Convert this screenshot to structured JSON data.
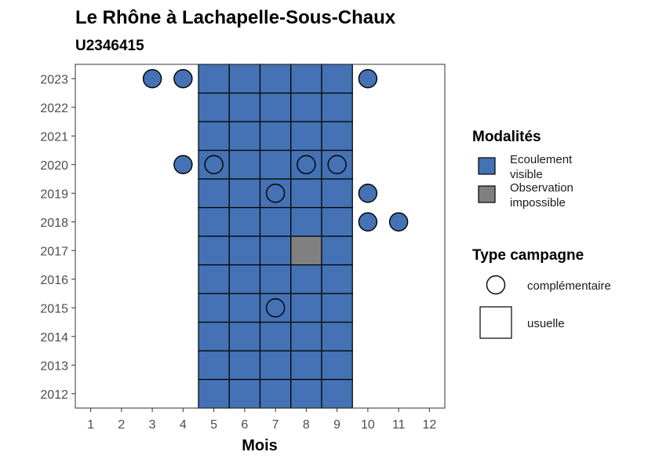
{
  "chart_data": {
    "type": "heatmap",
    "title": "Le Rhône à Lachapelle-Sous-Chaux",
    "subtitle": "U2346415",
    "xlabel": "Mois",
    "ylabel": "",
    "x_ticks": [
      "1",
      "2",
      "3",
      "4",
      "5",
      "6",
      "7",
      "8",
      "9",
      "10",
      "11",
      "12"
    ],
    "y_ticks": [
      "2012",
      "2013",
      "2014",
      "2015",
      "2016",
      "2017",
      "2018",
      "2019",
      "2020",
      "2021",
      "2022",
      "2023"
    ],
    "xlim": [
      0.5,
      12.5
    ],
    "ylim": [
      2011.5,
      2023.5
    ],
    "colors": {
      "ecoulement_visible": "#4472b4",
      "observation_impossible": "#808080"
    },
    "tiles": [
      {
        "month": 5,
        "year": 2012,
        "modalite": "Ecoulement visible"
      },
      {
        "month": 6,
        "year": 2012,
        "modalite": "Ecoulement visible"
      },
      {
        "month": 7,
        "year": 2012,
        "modalite": "Ecoulement visible"
      },
      {
        "month": 8,
        "year": 2012,
        "modalite": "Ecoulement visible"
      },
      {
        "month": 9,
        "year": 2012,
        "modalite": "Ecoulement visible"
      },
      {
        "month": 5,
        "year": 2013,
        "modalite": "Ecoulement visible"
      },
      {
        "month": 6,
        "year": 2013,
        "modalite": "Ecoulement visible"
      },
      {
        "month": 7,
        "year": 2013,
        "modalite": "Ecoulement visible"
      },
      {
        "month": 8,
        "year": 2013,
        "modalite": "Ecoulement visible"
      },
      {
        "month": 9,
        "year": 2013,
        "modalite": "Ecoulement visible"
      },
      {
        "month": 5,
        "year": 2014,
        "modalite": "Ecoulement visible"
      },
      {
        "month": 6,
        "year": 2014,
        "modalite": "Ecoulement visible"
      },
      {
        "month": 7,
        "year": 2014,
        "modalite": "Ecoulement visible"
      },
      {
        "month": 8,
        "year": 2014,
        "modalite": "Ecoulement visible"
      },
      {
        "month": 9,
        "year": 2014,
        "modalite": "Ecoulement visible"
      },
      {
        "month": 5,
        "year": 2015,
        "modalite": "Ecoulement visible"
      },
      {
        "month": 6,
        "year": 2015,
        "modalite": "Ecoulement visible"
      },
      {
        "month": 7,
        "year": 2015,
        "modalite": "Ecoulement visible"
      },
      {
        "month": 8,
        "year": 2015,
        "modalite": "Ecoulement visible"
      },
      {
        "month": 9,
        "year": 2015,
        "modalite": "Ecoulement visible"
      },
      {
        "month": 5,
        "year": 2016,
        "modalite": "Ecoulement visible"
      },
      {
        "month": 6,
        "year": 2016,
        "modalite": "Ecoulement visible"
      },
      {
        "month": 7,
        "year": 2016,
        "modalite": "Ecoulement visible"
      },
      {
        "month": 8,
        "year": 2016,
        "modalite": "Ecoulement visible"
      },
      {
        "month": 9,
        "year": 2016,
        "modalite": "Ecoulement visible"
      },
      {
        "month": 5,
        "year": 2017,
        "modalite": "Ecoulement visible"
      },
      {
        "month": 6,
        "year": 2017,
        "modalite": "Ecoulement visible"
      },
      {
        "month": 7,
        "year": 2017,
        "modalite": "Ecoulement visible"
      },
      {
        "month": 8,
        "year": 2017,
        "modalite": "Observation impossible"
      },
      {
        "month": 9,
        "year": 2017,
        "modalite": "Ecoulement visible"
      },
      {
        "month": 5,
        "year": 2018,
        "modalite": "Ecoulement visible"
      },
      {
        "month": 6,
        "year": 2018,
        "modalite": "Ecoulement visible"
      },
      {
        "month": 7,
        "year": 2018,
        "modalite": "Ecoulement visible"
      },
      {
        "month": 8,
        "year": 2018,
        "modalite": "Ecoulement visible"
      },
      {
        "month": 9,
        "year": 2018,
        "modalite": "Ecoulement visible"
      },
      {
        "month": 5,
        "year": 2019,
        "modalite": "Ecoulement visible"
      },
      {
        "month": 6,
        "year": 2019,
        "modalite": "Ecoulement visible"
      },
      {
        "month": 7,
        "year": 2019,
        "modalite": "Ecoulement visible"
      },
      {
        "month": 8,
        "year": 2019,
        "modalite": "Ecoulement visible"
      },
      {
        "month": 9,
        "year": 2019,
        "modalite": "Ecoulement visible"
      },
      {
        "month": 5,
        "year": 2020,
        "modalite": "Ecoulement visible"
      },
      {
        "month": 6,
        "year": 2020,
        "modalite": "Ecoulement visible"
      },
      {
        "month": 7,
        "year": 2020,
        "modalite": "Ecoulement visible"
      },
      {
        "month": 8,
        "year": 2020,
        "modalite": "Ecoulement visible"
      },
      {
        "month": 9,
        "year": 2020,
        "modalite": "Ecoulement visible"
      },
      {
        "month": 5,
        "year": 2021,
        "modalite": "Ecoulement visible"
      },
      {
        "month": 6,
        "year": 2021,
        "modalite": "Ecoulement visible"
      },
      {
        "month": 7,
        "year": 2021,
        "modalite": "Ecoulement visible"
      },
      {
        "month": 8,
        "year": 2021,
        "modalite": "Ecoulement visible"
      },
      {
        "month": 9,
        "year": 2021,
        "modalite": "Ecoulement visible"
      },
      {
        "month": 5,
        "year": 2022,
        "modalite": "Ecoulement visible"
      },
      {
        "month": 6,
        "year": 2022,
        "modalite": "Ecoulement visible"
      },
      {
        "month": 7,
        "year": 2022,
        "modalite": "Ecoulement visible"
      },
      {
        "month": 8,
        "year": 2022,
        "modalite": "Ecoulement visible"
      },
      {
        "month": 9,
        "year": 2022,
        "modalite": "Ecoulement visible"
      },
      {
        "month": 5,
        "year": 2023,
        "modalite": "Ecoulement visible"
      },
      {
        "month": 6,
        "year": 2023,
        "modalite": "Ecoulement visible"
      },
      {
        "month": 7,
        "year": 2023,
        "modalite": "Ecoulement visible"
      },
      {
        "month": 8,
        "year": 2023,
        "modalite": "Ecoulement visible"
      },
      {
        "month": 9,
        "year": 2023,
        "modalite": "Ecoulement visible"
      }
    ],
    "points": [
      {
        "month": 3,
        "year": 2023,
        "modalite": "Ecoulement visible",
        "campagne": "complémentaire"
      },
      {
        "month": 4,
        "year": 2023,
        "modalite": "Ecoulement visible",
        "campagne": "complémentaire"
      },
      {
        "month": 10,
        "year": 2023,
        "modalite": "Ecoulement visible",
        "campagne": "complémentaire"
      },
      {
        "month": 4,
        "year": 2020,
        "modalite": "Ecoulement visible",
        "campagne": "complémentaire"
      },
      {
        "month": 5,
        "year": 2020,
        "modalite": "Ecoulement visible",
        "campagne": "complémentaire"
      },
      {
        "month": 8,
        "year": 2020,
        "modalite": "Ecoulement visible",
        "campagne": "complémentaire"
      },
      {
        "month": 9,
        "year": 2020,
        "modalite": "Ecoulement visible",
        "campagne": "complémentaire"
      },
      {
        "month": 7,
        "year": 2019,
        "modalite": "Ecoulement visible",
        "campagne": "complémentaire"
      },
      {
        "month": 10,
        "year": 2019,
        "modalite": "Ecoulement visible",
        "campagne": "complémentaire"
      },
      {
        "month": 10,
        "year": 2018,
        "modalite": "Ecoulement visible",
        "campagne": "complémentaire"
      },
      {
        "month": 11,
        "year": 2018,
        "modalite": "Ecoulement visible",
        "campagne": "complémentaire"
      },
      {
        "month": 7,
        "year": 2015,
        "modalite": "Ecoulement visible",
        "campagne": "complémentaire"
      }
    ],
    "legend": {
      "placement": "right",
      "modalites_title": "Modalités",
      "modalites": [
        {
          "lines": [
            "Ecoulement",
            "visible"
          ],
          "color": "#4472b4"
        },
        {
          "lines": [
            "Observation",
            "impossible"
          ],
          "color": "#808080"
        }
      ],
      "campagne_title": "Type campagne",
      "campagnes": [
        {
          "label": "complémentaire",
          "shape": "circle"
        },
        {
          "label": "usuelle",
          "shape": "square"
        }
      ]
    },
    "grid": false
  }
}
